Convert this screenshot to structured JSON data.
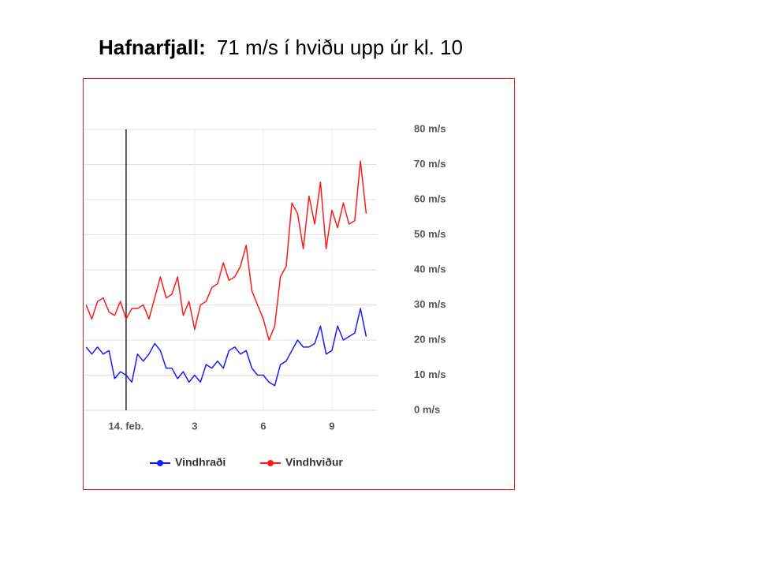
{
  "slide_title": {
    "place": "Hafnarfjall:",
    "text": "71 m/s í hviðu upp úr kl. 10"
  },
  "chart_data": {
    "type": "line",
    "x": [
      -1.75,
      -1.5,
      -1.25,
      -1.0,
      -0.75,
      -0.5,
      -0.25,
      0,
      0.25,
      0.5,
      0.75,
      1.0,
      1.25,
      1.5,
      1.75,
      2.0,
      2.25,
      2.5,
      2.75,
      3.0,
      3.25,
      3.5,
      3.75,
      4.0,
      4.25,
      4.5,
      4.75,
      5.0,
      5.25,
      5.5,
      5.75,
      6.0,
      6.25,
      6.5,
      6.75,
      7.0,
      7.25,
      7.5,
      7.75,
      8.0,
      8.25,
      8.5,
      8.75,
      9.0,
      9.25,
      9.5,
      9.75,
      10.0,
      10.25,
      10.5
    ],
    "series": [
      {
        "name": "Vindhraði",
        "color": "#1a1aff",
        "values": [
          18,
          16,
          18,
          16,
          17,
          9,
          11,
          10,
          8,
          16,
          14,
          16,
          19,
          17,
          12,
          12,
          9,
          11,
          8,
          10,
          8,
          13,
          12,
          14,
          12,
          17,
          18,
          16,
          17,
          12,
          10,
          10,
          8,
          7,
          13,
          14,
          17,
          20,
          18,
          18,
          19,
          24,
          16,
          17,
          24,
          20,
          21,
          22,
          29,
          21
        ]
      },
      {
        "name": "Vindhviður",
        "color": "#ff1a1a",
        "values": [
          30,
          26,
          31,
          32,
          28,
          27,
          31,
          26,
          29,
          29,
          30,
          26,
          32,
          38,
          32,
          33,
          38,
          27,
          31,
          23,
          30,
          31,
          35,
          36,
          42,
          37,
          38,
          41,
          47,
          34,
          30,
          26,
          20,
          24,
          38,
          41,
          59,
          56,
          46,
          61,
          53,
          65,
          46,
          57,
          52,
          59,
          53,
          54,
          71,
          56
        ]
      }
    ],
    "xlim": [
      -1.86,
      10.97
    ],
    "xticks": [
      {
        "value": 0,
        "label": "14. feb."
      },
      3,
      6,
      9
    ],
    "ylim": [
      0,
      80
    ],
    "yticks": [
      {
        "value": 0,
        "label": "0 m/s"
      },
      {
        "value": 10,
        "label": "10 m/s"
      },
      {
        "value": 20,
        "label": "20 m/s"
      },
      {
        "value": 30,
        "label": "30 m/s"
      },
      {
        "value": 40,
        "label": "40 m/s"
      },
      {
        "value": 50,
        "label": "50 m/s"
      },
      {
        "value": 60,
        "label": "60 m/s"
      },
      {
        "value": 70,
        "label": "70 m/s"
      },
      {
        "value": 80,
        "label": "80 m/s"
      }
    ],
    "grid": true,
    "marker_line_x": 0,
    "legend": "bottom"
  }
}
